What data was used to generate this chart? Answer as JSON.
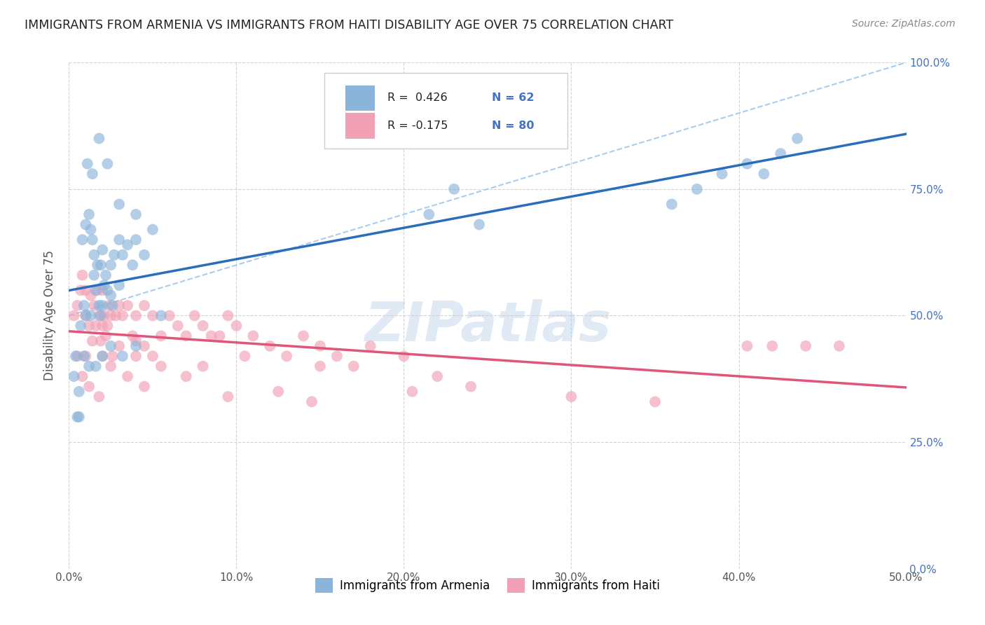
{
  "title": "IMMIGRANTS FROM ARMENIA VS IMMIGRANTS FROM HAITI DISABILITY AGE OVER 75 CORRELATION CHART",
  "source": "Source: ZipAtlas.com",
  "ylabel": "Disability Age Over 75",
  "xlim": [
    0.0,
    50.0
  ],
  "ylim": [
    0.0,
    100.0
  ],
  "yticks": [
    0.0,
    25.0,
    50.0,
    75.0,
    100.0
  ],
  "xticks": [
    0.0,
    10.0,
    20.0,
    30.0,
    40.0,
    50.0
  ],
  "armenia_R": 0.426,
  "armenia_N": 62,
  "haiti_R": -0.175,
  "haiti_N": 80,
  "armenia_color": "#8ab4d9",
  "haiti_color": "#f2a0b5",
  "armenia_line_color": "#2a6ebb",
  "haiti_line_color": "#e0557a",
  "diagonal_color": "#aaccee",
  "legend_label_armenia": "Immigrants from Armenia",
  "legend_label_haiti": "Immigrants from Haiti",
  "background_color": "#ffffff",
  "grid_color": "#c8c8c8",
  "watermark": "ZIPatlas",
  "armenia_x": [
    0.4,
    0.5,
    0.6,
    0.8,
    0.9,
    1.0,
    1.0,
    1.2,
    1.3,
    1.4,
    1.5,
    1.5,
    1.6,
    1.7,
    1.8,
    1.9,
    2.0,
    2.0,
    2.1,
    2.2,
    2.3,
    2.5,
    2.5,
    2.7,
    3.0,
    3.0,
    3.2,
    3.5,
    3.8,
    4.0,
    4.5,
    5.0,
    1.1,
    1.4,
    1.8,
    2.3,
    3.0,
    4.0,
    0.3,
    0.6,
    0.9,
    1.2,
    1.6,
    2.0,
    2.5,
    3.2,
    4.0,
    5.5,
    21.5,
    23.0,
    24.5,
    36.0,
    37.5,
    39.0,
    40.5,
    41.5,
    42.5,
    43.5,
    0.7,
    1.3,
    1.9,
    2.6
  ],
  "armenia_y": [
    42.0,
    30.0,
    30.0,
    65.0,
    52.0,
    68.0,
    50.0,
    70.0,
    67.0,
    65.0,
    62.0,
    58.0,
    55.0,
    60.0,
    52.0,
    60.0,
    63.0,
    52.0,
    56.0,
    58.0,
    55.0,
    60.0,
    54.0,
    62.0,
    65.0,
    56.0,
    62.0,
    64.0,
    60.0,
    65.0,
    62.0,
    67.0,
    80.0,
    78.0,
    85.0,
    80.0,
    72.0,
    70.0,
    38.0,
    35.0,
    42.0,
    40.0,
    40.0,
    42.0,
    44.0,
    42.0,
    44.0,
    50.0,
    70.0,
    75.0,
    68.0,
    72.0,
    75.0,
    78.0,
    80.0,
    78.0,
    82.0,
    85.0,
    48.0,
    50.0,
    50.0,
    52.0
  ],
  "haiti_x": [
    0.3,
    0.5,
    0.7,
    0.8,
    1.0,
    1.0,
    1.2,
    1.3,
    1.4,
    1.5,
    1.6,
    1.7,
    1.8,
    1.9,
    2.0,
    2.0,
    2.1,
    2.2,
    2.3,
    2.4,
    2.5,
    2.6,
    2.8,
    3.0,
    3.0,
    3.2,
    3.5,
    3.8,
    4.0,
    4.0,
    4.5,
    4.5,
    5.0,
    5.0,
    5.5,
    6.0,
    6.5,
    7.0,
    7.5,
    8.0,
    8.5,
    9.0,
    9.5,
    10.0,
    10.5,
    11.0,
    12.0,
    13.0,
    14.0,
    15.0,
    16.0,
    17.0,
    18.0,
    20.0,
    22.0,
    24.0,
    0.8,
    1.2,
    1.8,
    2.5,
    3.5,
    4.5,
    5.5,
    7.0,
    9.5,
    12.5,
    14.5,
    20.5,
    30.0,
    35.0,
    40.5,
    42.0,
    44.0,
    46.0,
    0.5,
    1.0,
    2.0,
    4.0,
    8.0,
    15.0
  ],
  "haiti_y": [
    50.0,
    52.0,
    55.0,
    58.0,
    55.0,
    50.0,
    48.0,
    54.0,
    45.0,
    52.0,
    48.0,
    55.0,
    50.0,
    45.0,
    55.0,
    42.0,
    50.0,
    46.0,
    48.0,
    52.0,
    50.0,
    42.0,
    50.0,
    52.0,
    44.0,
    50.0,
    52.0,
    46.0,
    50.0,
    45.0,
    52.0,
    44.0,
    50.0,
    42.0,
    46.0,
    50.0,
    48.0,
    46.0,
    50.0,
    48.0,
    46.0,
    46.0,
    50.0,
    48.0,
    42.0,
    46.0,
    44.0,
    42.0,
    46.0,
    44.0,
    42.0,
    40.0,
    44.0,
    42.0,
    38.0,
    36.0,
    38.0,
    36.0,
    34.0,
    40.0,
    38.0,
    36.0,
    40.0,
    38.0,
    34.0,
    35.0,
    33.0,
    35.0,
    34.0,
    33.0,
    44.0,
    44.0,
    44.0,
    44.0,
    42.0,
    42.0,
    48.0,
    42.0,
    40.0,
    40.0
  ]
}
